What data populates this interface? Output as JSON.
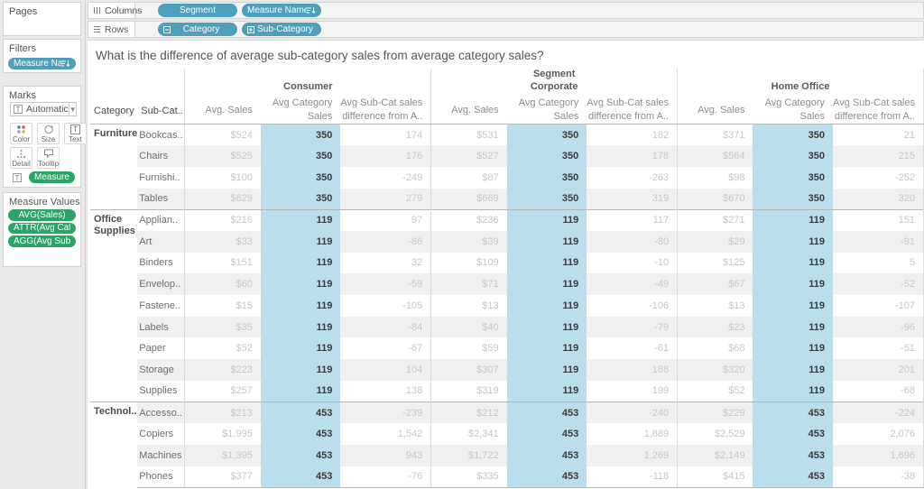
{
  "shelves": {
    "columns_label": "Columns",
    "rows_label": "Rows",
    "columns_pills": [
      {
        "label": "Segment",
        "icon": null
      },
      {
        "label": "Measure Names",
        "icon": "sort"
      }
    ],
    "rows_pills": [
      {
        "label": "Category",
        "icon": "collapse"
      },
      {
        "label": "Sub-Category",
        "icon": "expand"
      }
    ]
  },
  "sidebar": {
    "pages_title": "Pages",
    "filters_title": "Filters",
    "filter_pills": [
      {
        "label": "Measure Names",
        "icon": "sort"
      }
    ],
    "marks_title": "Marks",
    "mark_type": "Automatic",
    "mark_type_icon": "T",
    "mark_buttons": [
      {
        "label": "Color",
        "icon": "color-icon"
      },
      {
        "label": "Size",
        "icon": "size-icon"
      },
      {
        "label": "Text",
        "icon": "text-icon"
      },
      {
        "label": "Detail",
        "icon": "detail-icon"
      },
      {
        "label": "Tooltip",
        "icon": "tooltip-icon"
      }
    ],
    "marks_pill": "Measure Values",
    "measure_values_title": "Measure Values",
    "measure_value_pills": [
      "AVG(Sales)",
      "ATTR(Avg Category ..",
      "AGG(Avg Sub-Cat sa.."
    ]
  },
  "sheet": {
    "title": "What is the difference of average sub-category sales from average category sales?"
  },
  "table": {
    "dimension_label": "Segment",
    "row_headers": {
      "category": "Category",
      "sub_category": "Sub-Cat.."
    },
    "segments": [
      "Consumer",
      "Corporate",
      "Home Office"
    ],
    "measure_headers": [
      [
        "Avg. Sales"
      ],
      [
        "Avg Category",
        "Sales"
      ],
      [
        "Avg Sub-Cat sales",
        "difference from A.."
      ]
    ],
    "categories": [
      {
        "name": "Furniture",
        "rows": [
          {
            "sub_category": "Bookcas..",
            "consumer": [
              "$524",
              "350",
              "174"
            ],
            "corporate": [
              "$531",
              "350",
              "182"
            ],
            "home_office": [
              "$371",
              "350",
              "21"
            ]
          },
          {
            "sub_category": "Chairs",
            "consumer": [
              "$525",
              "350",
              "176"
            ],
            "corporate": [
              "$527",
              "350",
              "178"
            ],
            "home_office": [
              "$564",
              "350",
              "215"
            ]
          },
          {
            "sub_category": "Furnishi..",
            "consumer": [
              "$100",
              "350",
              "-249"
            ],
            "corporate": [
              "$87",
              "350",
              "-263"
            ],
            "home_office": [
              "$98",
              "350",
              "-252"
            ]
          },
          {
            "sub_category": "Tables",
            "consumer": [
              "$629",
              "350",
              "279"
            ],
            "corporate": [
              "$669",
              "350",
              "319"
            ],
            "home_office": [
              "$670",
              "350",
              "320"
            ]
          }
        ]
      },
      {
        "name": "Office Supplies",
        "rows": [
          {
            "sub_category": "Applian..",
            "consumer": [
              "$216",
              "119",
              "97"
            ],
            "corporate": [
              "$236",
              "119",
              "117"
            ],
            "home_office": [
              "$271",
              "119",
              "151"
            ]
          },
          {
            "sub_category": "Art",
            "consumer": [
              "$33",
              "119",
              "-86"
            ],
            "corporate": [
              "$39",
              "119",
              "-80"
            ],
            "home_office": [
              "$29",
              "119",
              "-91"
            ]
          },
          {
            "sub_category": "Binders",
            "consumer": [
              "$151",
              "119",
              "32"
            ],
            "corporate": [
              "$109",
              "119",
              "-10"
            ],
            "home_office": [
              "$125",
              "119",
              "5"
            ]
          },
          {
            "sub_category": "Envelop..",
            "consumer": [
              "$60",
              "119",
              "-59"
            ],
            "corporate": [
              "$71",
              "119",
              "-49"
            ],
            "home_office": [
              "$67",
              "119",
              "-52"
            ]
          },
          {
            "sub_category": "Fastene..",
            "consumer": [
              "$15",
              "119",
              "-105"
            ],
            "corporate": [
              "$13",
              "119",
              "-106"
            ],
            "home_office": [
              "$13",
              "119",
              "-107"
            ]
          },
          {
            "sub_category": "Labels",
            "consumer": [
              "$35",
              "119",
              "-84"
            ],
            "corporate": [
              "$40",
              "119",
              "-79"
            ],
            "home_office": [
              "$23",
              "119",
              "-96"
            ]
          },
          {
            "sub_category": "Paper",
            "consumer": [
              "$52",
              "119",
              "-67"
            ],
            "corporate": [
              "$59",
              "119",
              "-61"
            ],
            "home_office": [
              "$68",
              "119",
              "-51"
            ]
          },
          {
            "sub_category": "Storage",
            "consumer": [
              "$223",
              "119",
              "104"
            ],
            "corporate": [
              "$307",
              "119",
              "188"
            ],
            "home_office": [
              "$320",
              "119",
              "201"
            ]
          },
          {
            "sub_category": "Supplies",
            "consumer": [
              "$257",
              "119",
              "138"
            ],
            "corporate": [
              "$319",
              "119",
              "199"
            ],
            "home_office": [
              "$52",
              "119",
              "-68"
            ]
          }
        ]
      },
      {
        "name": "Technol..",
        "rows": [
          {
            "sub_category": "Accesso..",
            "consumer": [
              "$213",
              "453",
              "-239"
            ],
            "corporate": [
              "$212",
              "453",
              "-240"
            ],
            "home_office": [
              "$229",
              "453",
              "-224"
            ]
          },
          {
            "sub_category": "Copiers",
            "consumer": [
              "$1,995",
              "453",
              "1,542"
            ],
            "corporate": [
              "$2,341",
              "453",
              "1,889"
            ],
            "home_office": [
              "$2,529",
              "453",
              "2,076"
            ]
          },
          {
            "sub_category": "Machines",
            "consumer": [
              "$1,395",
              "453",
              "943"
            ],
            "corporate": [
              "$1,722",
              "453",
              "1,269"
            ],
            "home_office": [
              "$2,149",
              "453",
              "1,696"
            ]
          },
          {
            "sub_category": "Phones",
            "consumer": [
              "$377",
              "453",
              "-76"
            ],
            "corporate": [
              "$335",
              "453",
              "-118"
            ],
            "home_office": [
              "$415",
              "453",
              "-38"
            ]
          }
        ]
      }
    ]
  },
  "colors": {
    "dimension_pill": "#4e9fbc",
    "measure_pill": "#2aa567",
    "highlight_column": "#badeec",
    "row_band": "#f0f0f0"
  }
}
